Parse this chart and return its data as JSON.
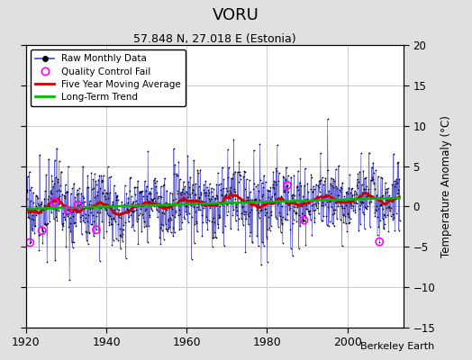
{
  "title": "VORU",
  "subtitle": "57.848 N, 27.018 E (Estonia)",
  "ylabel": "Temperature Anomaly (°C)",
  "credit": "Berkeley Earth",
  "xlim": [
    1920,
    2014
  ],
  "ylim": [
    -15,
    20
  ],
  "yticks": [
    -15,
    -10,
    -5,
    0,
    5,
    10,
    15,
    20
  ],
  "xticks": [
    1920,
    1940,
    1960,
    1980,
    2000
  ],
  "outer_bg": "#e0e0e0",
  "plot_bg": "#ffffff",
  "raw_color": "#4444cc",
  "dot_color": "#000000",
  "moving_avg_color": "#cc0000",
  "trend_color": "#00bb00",
  "qc_color": "#ff00ff",
  "grid_color": "#cccccc",
  "seed": 17,
  "n_months": 1116,
  "start_year": 1920
}
